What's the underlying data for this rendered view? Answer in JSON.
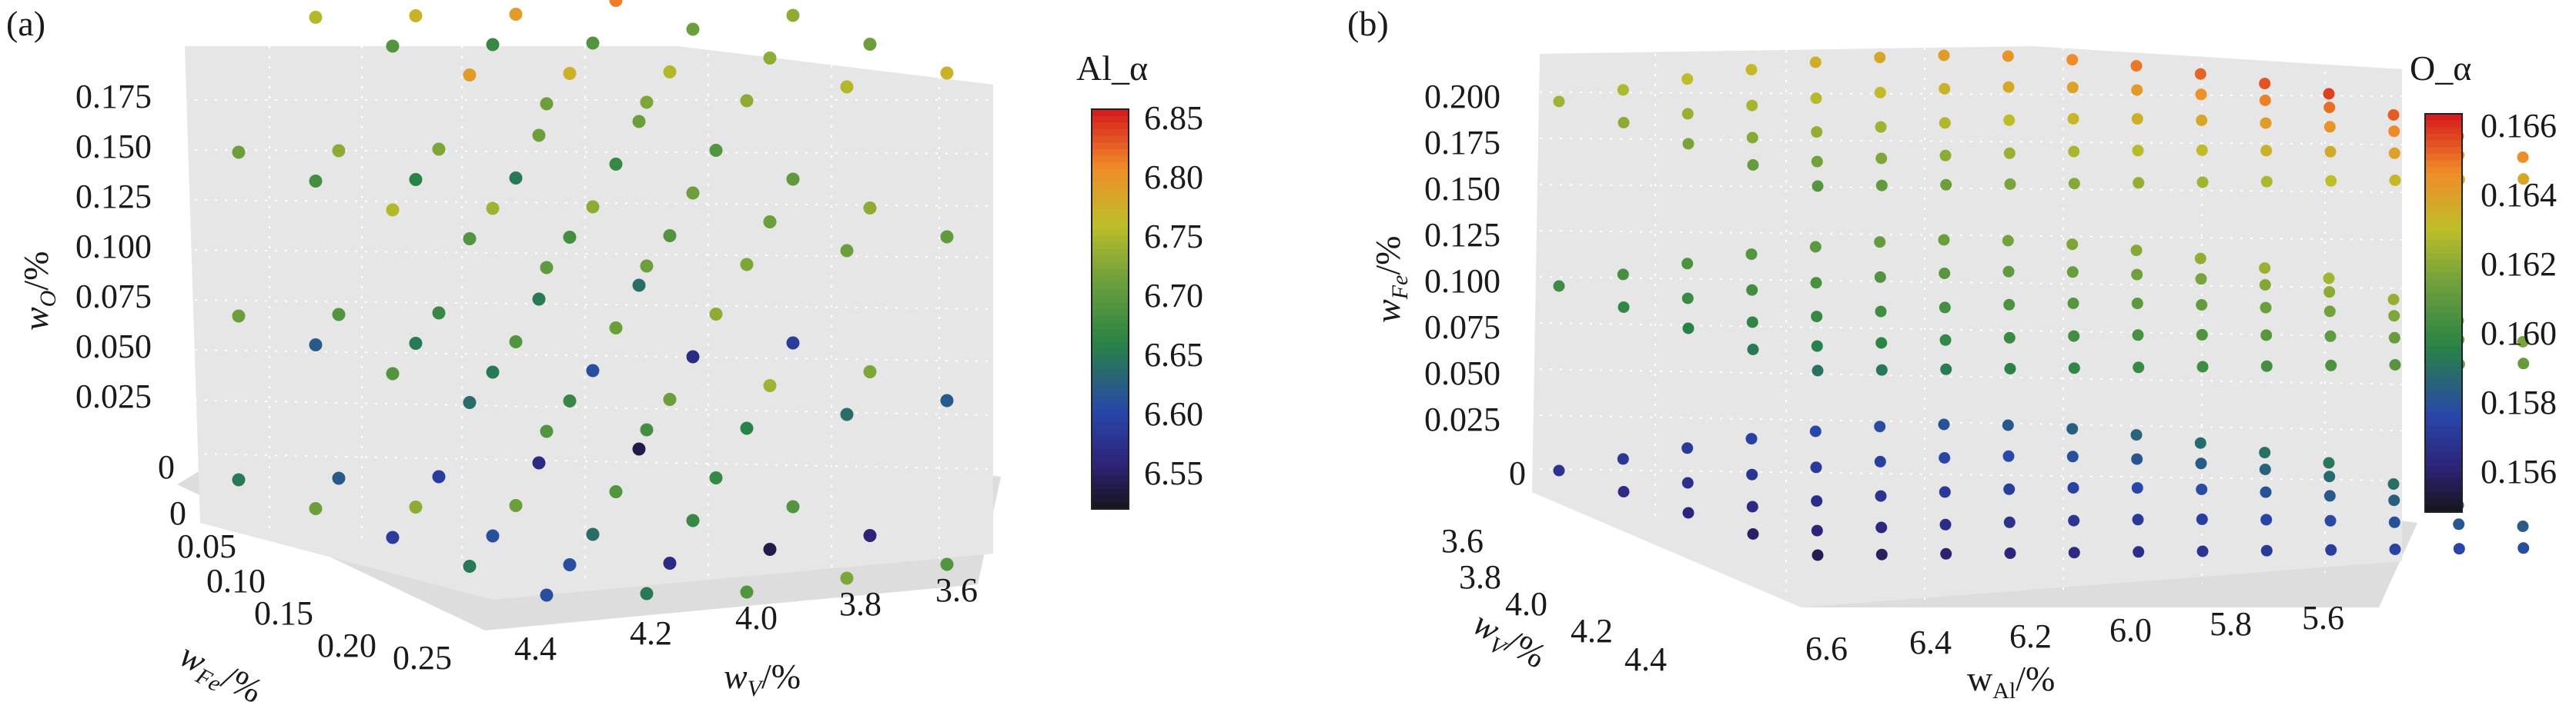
{
  "chart_data": [
    {
      "panel": "(a)",
      "type": "scatter",
      "projection": "3d",
      "background": "#e5e5e5",
      "grid": true,
      "x": {
        "label_main": "w",
        "label_sub": "V",
        "label_unit": "/%",
        "ticks": [
          "3.6",
          "3.8",
          "4.0",
          "4.2",
          "4.4"
        ],
        "range": [
          3.6,
          4.4
        ]
      },
      "y": {
        "label_main": "w",
        "label_sub": "Fe",
        "label_unit": "/%",
        "ticks": [
          "0",
          "0.05",
          "0.10",
          "0.15",
          "0.20",
          "0.25"
        ],
        "range": [
          0,
          0.25
        ]
      },
      "z": {
        "label_main": "w",
        "label_sub": "O",
        "label_unit": "/%",
        "ticks": [
          "0",
          "0.025",
          "0.050",
          "0.075",
          "0.100",
          "0.125",
          "0.150",
          "0.175"
        ],
        "range": [
          0,
          0.18
        ]
      },
      "colorbar": {
        "title": "Al_α",
        "ticks": [
          "6.55",
          "6.60",
          "6.65",
          "6.70",
          "6.75",
          "6.80",
          "6.85"
        ],
        "range": [
          6.53,
          6.86
        ]
      },
      "layers_z": [
        0,
        0.06,
        0.12,
        0.18
      ],
      "fe_values": [
        0.03,
        0.08,
        0.13,
        0.18,
        0.23
      ],
      "v_values": [
        3.6,
        3.8,
        4.0,
        4.2,
        4.4
      ],
      "color_series": [
        {
          "z": 0,
          "values": [
            6.55,
            6.58,
            6.6,
            6.63,
            6.66,
            6.68,
            6.7,
            6.72,
            6.74,
            6.72,
            6.7,
            6.68,
            6.65,
            6.62,
            6.6,
            6.57,
            6.55,
            6.58,
            6.62,
            6.66,
            6.7,
            6.73,
            6.7,
            6.66,
            6.62
          ]
        },
        {
          "z": 0.06,
          "values": [
            6.65,
            6.66,
            6.68,
            6.7,
            6.72,
            6.74,
            6.72,
            6.7,
            6.66,
            6.63,
            6.6,
            6.58,
            6.62,
            6.66,
            6.7,
            6.73,
            6.75,
            6.72,
            6.68,
            6.65,
            6.63,
            6.65,
            6.67,
            6.69,
            6.7
          ]
        },
        {
          "z": 0.12,
          "values": [
            6.72,
            6.72,
            6.73,
            6.74,
            6.72,
            6.7,
            6.68,
            6.66,
            6.67,
            6.69,
            6.71,
            6.72,
            6.74,
            6.75,
            6.76,
            6.74,
            6.72,
            6.7,
            6.69,
            6.7,
            6.71,
            6.72,
            6.73,
            6.72,
            6.71
          ]
        },
        {
          "z": 0.18,
          "values": [
            6.76,
            6.77,
            6.78,
            6.8,
            6.82,
            6.84,
            6.82,
            6.8,
            6.78,
            6.76,
            6.74,
            6.72,
            6.7,
            6.68,
            6.7,
            6.72,
            6.74,
            6.76,
            6.78,
            6.8,
            6.78,
            6.76,
            6.74,
            6.73,
            6.72
          ]
        }
      ]
    },
    {
      "panel": "(b)",
      "type": "scatter",
      "projection": "3d",
      "background": "#e5e5e5",
      "grid": true,
      "x": {
        "label_main": "w",
        "label_sub": "Al",
        "label_unit": "/%",
        "ticks": [
          "5.6",
          "5.8",
          "6.0",
          "6.2",
          "6.4",
          "6.6"
        ],
        "range": [
          5.5,
          6.7
        ]
      },
      "y": {
        "label_main": "w",
        "label_sub": "V",
        "label_unit": "/%",
        "ticks": [
          "3.6",
          "3.8",
          "4.0",
          "4.2",
          "4.4"
        ],
        "range": [
          3.6,
          4.4
        ]
      },
      "z": {
        "label_main": "w",
        "label_sub": "Fe",
        "label_unit": "/%",
        "ticks": [
          "0",
          "0.025",
          "0.050",
          "0.075",
          "0.100",
          "0.125",
          "0.150",
          "0.175",
          "0.200"
        ],
        "range": [
          0,
          0.2
        ]
      },
      "colorbar": {
        "title": "O_α",
        "ticks": [
          "0.156",
          "0.158",
          "0.160",
          "0.162",
          "0.164",
          "0.166"
        ],
        "range": [
          0.1548,
          0.1665
        ]
      },
      "layers_z": [
        0,
        0.1,
        0.2
      ],
      "al_values": [
        5.5,
        5.6,
        5.7,
        5.8,
        5.9,
        6.0,
        6.1,
        6.2,
        6.3,
        6.4,
        6.5,
        6.6,
        6.7
      ],
      "v_values": [
        3.6,
        3.8,
        4.0,
        4.2,
        4.4
      ],
      "layer_color_range": [
        {
          "z": 0,
          "min": 0.155,
          "max": 0.1595
        },
        {
          "z": 0.1,
          "min": 0.1585,
          "max": 0.1628
        },
        {
          "z": 0.2,
          "min": 0.16,
          "max": 0.1662
        }
      ]
    }
  ]
}
